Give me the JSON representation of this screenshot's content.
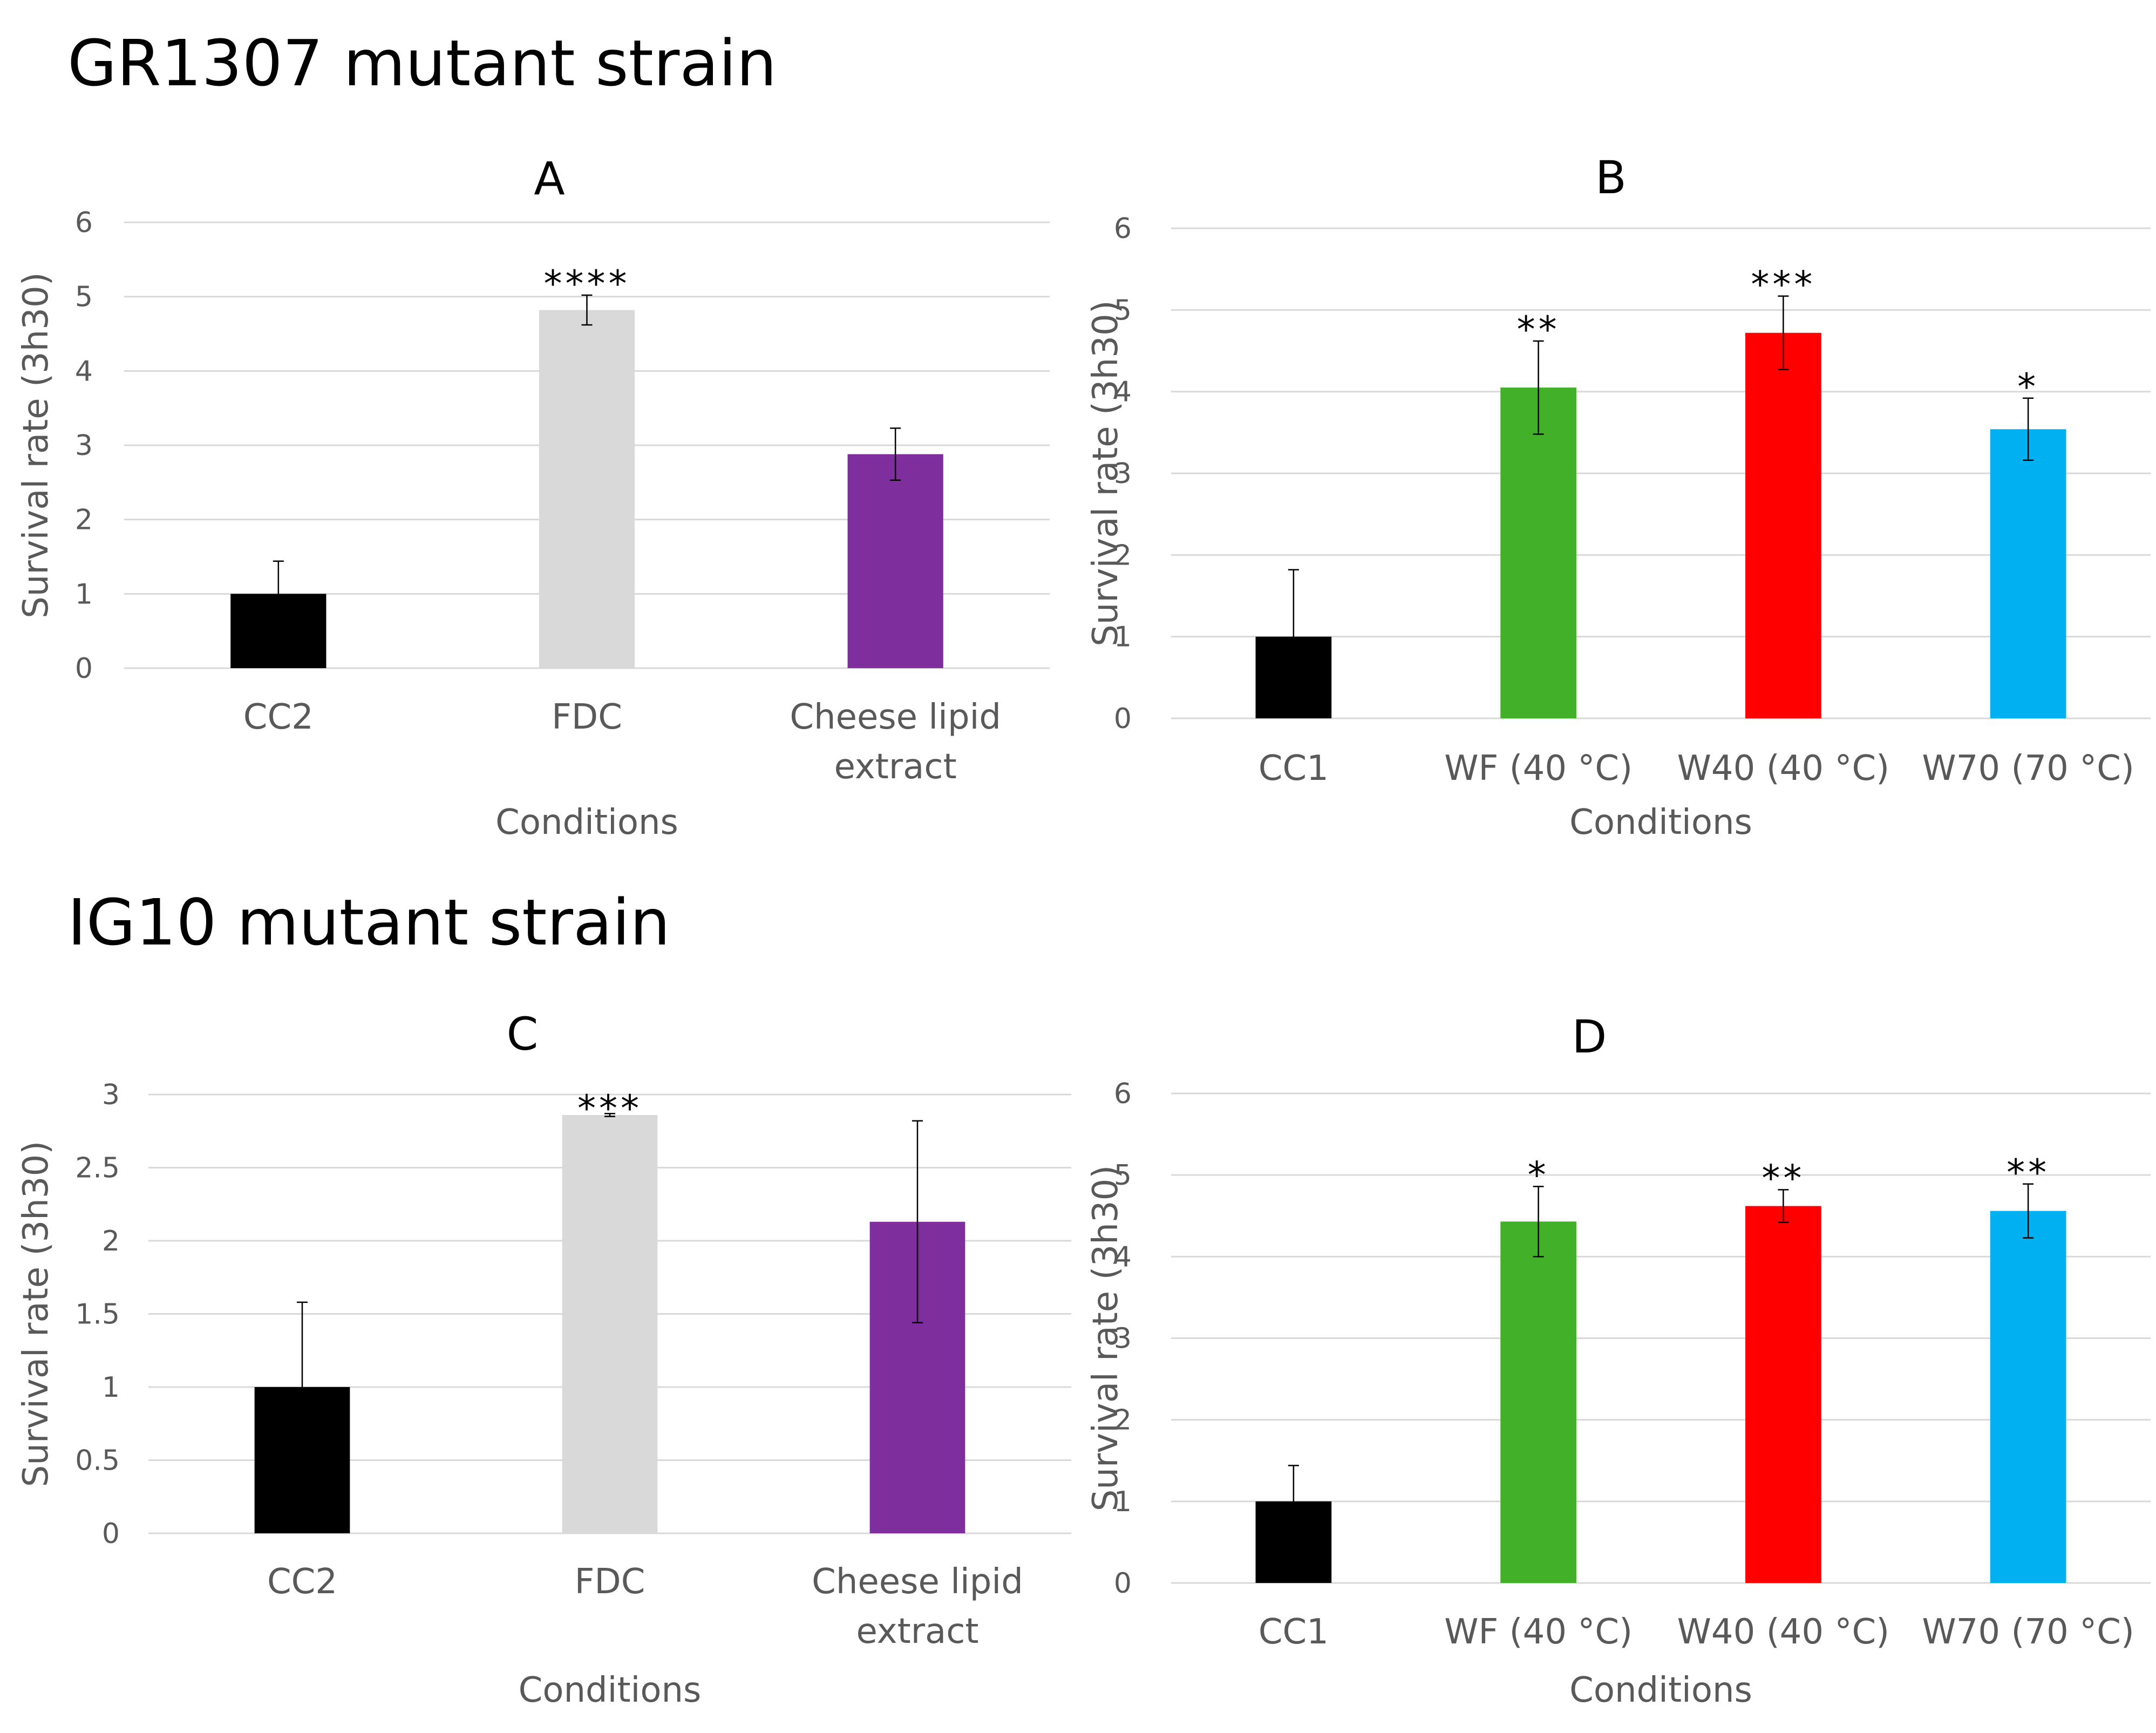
{
  "figure": {
    "section_top_title": "GR1307 mutant strain",
    "section_bottom_title": "IG10 mutant strain"
  },
  "chart_data": [
    {
      "type": "bar",
      "title": "A",
      "xlabel": "Conditions",
      "ylabel": "Survival rate (3h30)",
      "ylim": [
        0,
        6
      ],
      "yticks": [
        0,
        1,
        2,
        3,
        4,
        5,
        6
      ],
      "grid": true,
      "categories": [
        [
          "CC2"
        ],
        [
          "FDC"
        ],
        [
          "Cheese lipid",
          "extract"
        ]
      ],
      "values": [
        1.0,
        4.82,
        2.88
      ],
      "errors": [
        0.44,
        0.2,
        0.35
      ],
      "significance": [
        "",
        "****",
        ""
      ],
      "colors": [
        "#000000",
        "#d9d9d9",
        "#7f2e9e"
      ]
    },
    {
      "type": "bar",
      "title": "B",
      "xlabel": "Conditions",
      "ylabel": "Survival rate (3h30)",
      "ylim": [
        0,
        6
      ],
      "yticks": [
        0,
        1,
        2,
        3,
        4,
        5,
        6
      ],
      "grid": true,
      "categories": [
        [
          "CC1"
        ],
        [
          "WF (40 °C)"
        ],
        [
          "W40 (40 °C)"
        ],
        [
          "W70 (70 °C)"
        ]
      ],
      "values": [
        1.0,
        4.05,
        4.72,
        3.54
      ],
      "errors": [
        0.82,
        0.57,
        0.45,
        0.38
      ],
      "significance": [
        "",
        "**",
        "***",
        "*"
      ],
      "colors": [
        "#000000",
        "#43b02a",
        "#ff0000",
        "#00b0f0"
      ]
    },
    {
      "type": "bar",
      "title": "C",
      "xlabel": "Conditions",
      "ylabel": "Survival rate (3h30)",
      "ylim": [
        0,
        3
      ],
      "yticks": [
        0,
        0.5,
        1,
        1.5,
        2,
        2.5,
        3
      ],
      "grid": true,
      "categories": [
        [
          "CC2"
        ],
        [
          "FDC"
        ],
        [
          "Cheese lipid",
          "extract"
        ]
      ],
      "values": [
        1.0,
        2.86,
        2.13
      ],
      "errors": [
        0.58,
        0.01,
        0.69
      ],
      "significance": [
        "",
        "***",
        ""
      ],
      "colors": [
        "#000000",
        "#d9d9d9",
        "#7f2e9e"
      ]
    },
    {
      "type": "bar",
      "title": "D",
      "xlabel": "Conditions",
      "ylabel": "Survival rate (3h30)",
      "ylim": [
        0,
        6
      ],
      "yticks": [
        0,
        1,
        2,
        3,
        4,
        5,
        6
      ],
      "grid": true,
      "categories": [
        [
          "CC1"
        ],
        [
          "WF (40 °C)"
        ],
        [
          "W40 (40 °C)"
        ],
        [
          "W70 (70 °C)"
        ]
      ],
      "values": [
        1.0,
        4.43,
        4.62,
        4.56
      ],
      "errors": [
        0.44,
        0.43,
        0.2,
        0.33
      ],
      "significance": [
        "",
        "*",
        "**",
        "**"
      ],
      "colors": [
        "#000000",
        "#43b02a",
        "#ff0000",
        "#00b0f0"
      ]
    }
  ]
}
